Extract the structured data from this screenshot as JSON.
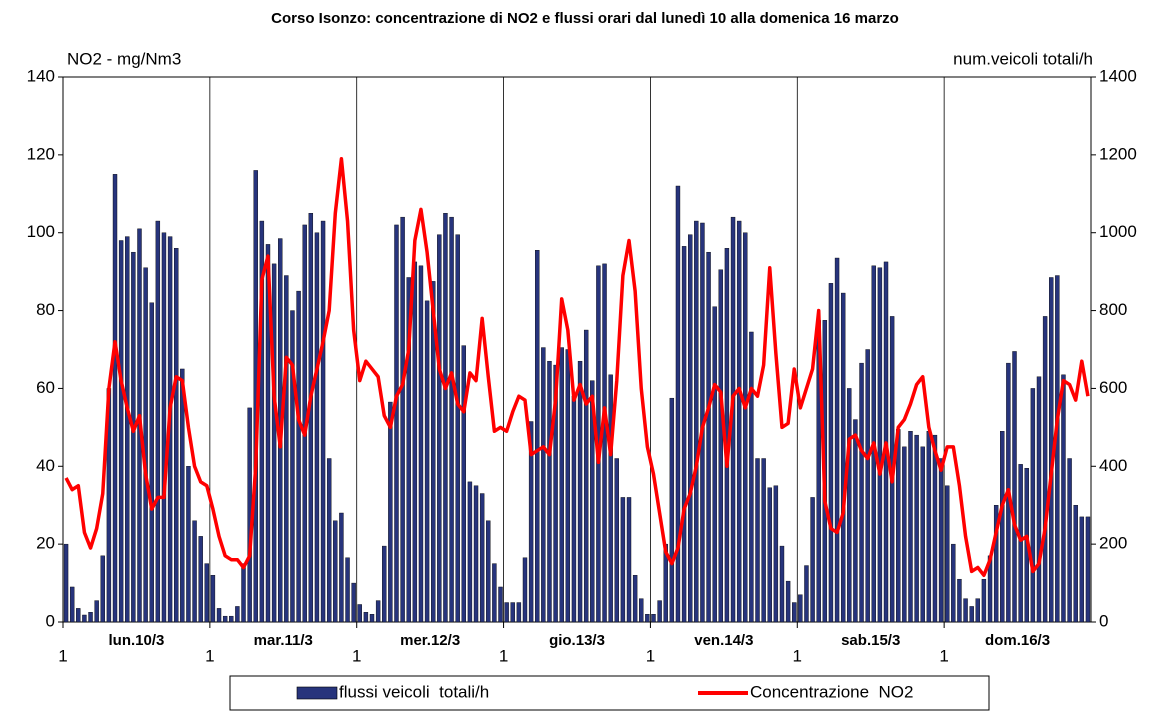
{
  "chart_data": {
    "type": "bar",
    "title": "Corso Isonzo: concentrazione di NO2 e flussi orari dal lunedì 10 alla domenica 16 marzo",
    "y_label": "NO2 - mg/Nm3",
    "y2_label": "num.veicoli totali/h",
    "categories": [
      "1",
      null,
      null,
      null,
      null,
      null,
      null,
      null,
      null,
      null,
      null,
      null,
      null,
      null,
      null,
      null,
      null,
      null,
      null,
      null,
      null,
      null,
      null,
      null,
      "1",
      null,
      null,
      null,
      null,
      null,
      null,
      null,
      null,
      null,
      null,
      null,
      null,
      null,
      null,
      null,
      null,
      null,
      null,
      null,
      null,
      null,
      null,
      null,
      "1",
      null,
      null,
      null,
      null,
      null,
      null,
      null,
      null,
      null,
      null,
      null,
      null,
      null,
      null,
      null,
      null,
      null,
      null,
      null,
      null,
      null,
      null,
      null,
      "1",
      null,
      null,
      null,
      null,
      null,
      null,
      null,
      null,
      null,
      null,
      null,
      null,
      null,
      null,
      null,
      null,
      null,
      null,
      null,
      null,
      null,
      null,
      null,
      "1",
      null,
      null,
      null,
      null,
      null,
      null,
      null,
      null,
      null,
      null,
      null,
      null,
      null,
      null,
      null,
      null,
      null,
      null,
      null,
      null,
      null,
      null,
      null,
      "1",
      null,
      null,
      null,
      null,
      null,
      null,
      null,
      null,
      null,
      null,
      null,
      null,
      null,
      null,
      null,
      null,
      null,
      null,
      null,
      null,
      null,
      null,
      null,
      "1",
      null,
      null,
      null,
      null,
      null,
      null,
      null,
      null,
      null,
      null,
      null,
      null,
      null,
      null,
      null,
      null,
      null,
      null,
      null,
      null,
      null,
      null,
      null
    ],
    "day_labels": [
      "lun.10/3",
      "mar.11/3",
      "mer.12/3",
      "gio.13/3",
      "ven.14/3",
      "sab.15/3",
      "dom.16/3"
    ],
    "ylim": [
      0,
      140
    ],
    "yticks": [
      0,
      20,
      40,
      60,
      80,
      100,
      120,
      140
    ],
    "y2lim": [
      0,
      1400
    ],
    "y2ticks": [
      0,
      200,
      400,
      600,
      800,
      1000,
      1200,
      1400
    ],
    "series": [
      {
        "name": "flussi veicoli  totali/h",
        "type": "bar",
        "axis": "y2",
        "color": "#27347c",
        "values": [
          200,
          90,
          35,
          18,
          25,
          55,
          170,
          600,
          1150,
          980,
          990,
          950,
          1010,
          910,
          820,
          1030,
          1000,
          990,
          960,
          650,
          400,
          260,
          220,
          150,
          120,
          35,
          15,
          15,
          40,
          150,
          550,
          1160,
          1030,
          970,
          920,
          985,
          890,
          800,
          850,
          1020,
          1050,
          1000,
          1030,
          420,
          260,
          280,
          165,
          100,
          45,
          25,
          20,
          55,
          195,
          565,
          1020,
          1040,
          885,
          925,
          915,
          825,
          875,
          995,
          1050,
          1040,
          995,
          710,
          360,
          350,
          330,
          260,
          150,
          90,
          50,
          50,
          50,
          165,
          515,
          955,
          705,
          670,
          660,
          705,
          700,
          580,
          670,
          750,
          620,
          915,
          920,
          635,
          420,
          320,
          320,
          120,
          60,
          20,
          20,
          55,
          200,
          575,
          1120,
          965,
          995,
          1030,
          1025,
          950,
          810,
          905,
          960,
          1040,
          1030,
          1000,
          745,
          420,
          420,
          345,
          350,
          195,
          105,
          50,
          70,
          145,
          320,
          775,
          775,
          870,
          935,
          845,
          600,
          520,
          665,
          700,
          915,
          910,
          925,
          785,
          495,
          450,
          490,
          480,
          450,
          490,
          480,
          420,
          350,
          200,
          110,
          60,
          40,
          60,
          110,
          170,
          300,
          490,
          665,
          695,
          405,
          395,
          600,
          630,
          785,
          885,
          890,
          635,
          420,
          300,
          270,
          270
        ]
      },
      {
        "name": "Concentrazione  NO2",
        "type": "line",
        "color": "#ff0000",
        "values": [
          37,
          34,
          35,
          23,
          19,
          24,
          33,
          60,
          72,
          62,
          55,
          49,
          53,
          38,
          29,
          32,
          32,
          55,
          63,
          62,
          50,
          40,
          36,
          35,
          29,
          22,
          17,
          16,
          16,
          14,
          17,
          40,
          88,
          94,
          58,
          45,
          68,
          66,
          52,
          48,
          58,
          65,
          72,
          80,
          105,
          119,
          103,
          75,
          62,
          67,
          65,
          63,
          53,
          50,
          58,
          61,
          70,
          98,
          106,
          95,
          80,
          65,
          60,
          64,
          56,
          54,
          64,
          62,
          78,
          63,
          49,
          50,
          49,
          54,
          58,
          57,
          43,
          44,
          45,
          43,
          57,
          83,
          75,
          57,
          61,
          56,
          58,
          41,
          55,
          43,
          62,
          89,
          98,
          85,
          60,
          45,
          38,
          28,
          18,
          15,
          19,
          29,
          33,
          40,
          50,
          55,
          61,
          59,
          40,
          58,
          60,
          55,
          60,
          58,
          66,
          91,
          69,
          50,
          51,
          65,
          55,
          60,
          65,
          80,
          31,
          24,
          23,
          28,
          47,
          48,
          44,
          42,
          46,
          38,
          46,
          36,
          50,
          52,
          56,
          61,
          63,
          50,
          44,
          39,
          45,
          45,
          35,
          22,
          13,
          14,
          12,
          16,
          23,
          30,
          34,
          25,
          21,
          22,
          13,
          15,
          24,
          38,
          52,
          62,
          61,
          57,
          67,
          58
        ]
      }
    ]
  }
}
